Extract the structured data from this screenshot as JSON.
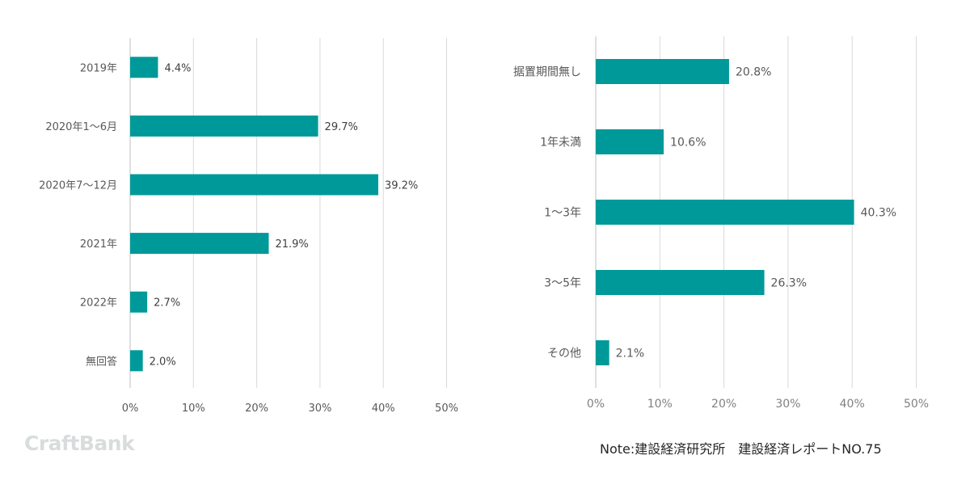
{
  "chart_data": [
    {
      "type": "bar",
      "orientation": "horizontal",
      "categories": [
        "2019年",
        "2020年1〜6月",
        "2020年7〜12月",
        "2021年",
        "2022年",
        "無回答"
      ],
      "values": [
        4.4,
        29.7,
        39.2,
        21.9,
        2.7,
        2.0
      ],
      "data_labels": [
        "4.4%",
        "29.7%",
        "39.2%",
        "21.9%",
        "2.7%",
        "2.0%"
      ],
      "xlim": [
        0,
        50
      ],
      "x_ticks": [
        0,
        10,
        20,
        30,
        40,
        50
      ],
      "x_tick_labels": [
        "0%",
        "10%",
        "20%",
        "30%",
        "40%",
        "50%"
      ],
      "grid": true,
      "bar_color": "#009999"
    },
    {
      "type": "bar",
      "orientation": "horizontal",
      "categories": [
        "据置期間無し",
        "1年未満",
        "1〜3年",
        "3〜5年",
        "その他"
      ],
      "values": [
        20.8,
        10.6,
        40.3,
        26.3,
        2.1
      ],
      "data_labels": [
        "20.8%",
        "10.6%",
        "40.3%",
        "26.3%",
        "2.1%"
      ],
      "xlim": [
        0,
        50
      ],
      "x_ticks": [
        0,
        10,
        20,
        30,
        40,
        50
      ],
      "x_tick_labels": [
        "0%",
        "10%",
        "20%",
        "30%",
        "40%",
        "50%"
      ],
      "grid": true,
      "bar_color": "#009999"
    }
  ],
  "footer": {
    "brand": "CraftBank",
    "source": "Note:建設経済研究所　建設経済レポートNO.75"
  }
}
